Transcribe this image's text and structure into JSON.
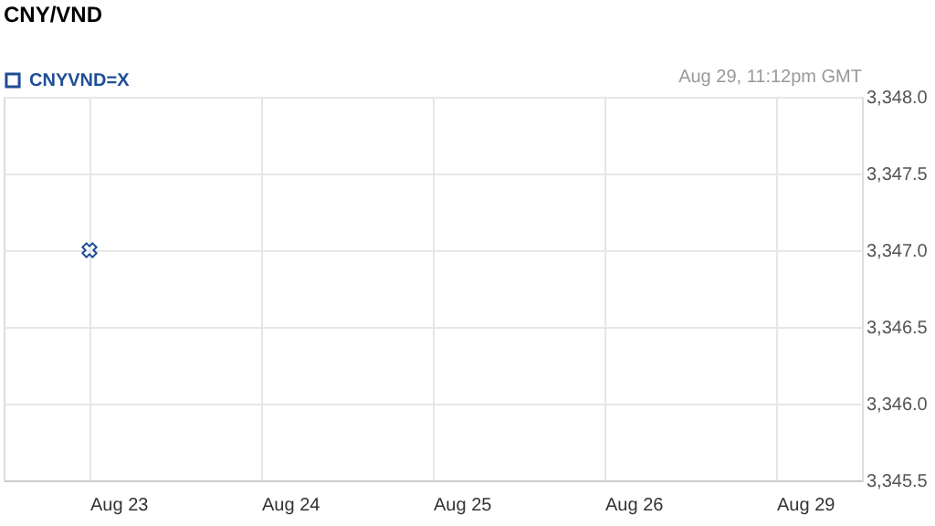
{
  "chart_data": {
    "type": "scatter",
    "title": "CNY/VND",
    "annotations": [
      "Aug 29, 11:12pm GMT"
    ],
    "categories": [
      "Aug 23",
      "Aug 24",
      "Aug 25",
      "Aug 26",
      "Aug 29"
    ],
    "series": [
      {
        "name": "CNYVND=X",
        "color": "#1f4e96",
        "values": [
          3347.0,
          null,
          null,
          null,
          null
        ]
      }
    ],
    "ylim": [
      3345.5,
      3348.0
    ],
    "yticks": [
      {
        "value": 3345.5,
        "label": "3,345.5"
      },
      {
        "value": 3346.0,
        "label": "3,346.0"
      },
      {
        "value": 3346.5,
        "label": "3,346.5"
      },
      {
        "value": 3347.0,
        "label": "3,347.0"
      },
      {
        "value": 3347.5,
        "label": "3,347.5"
      },
      {
        "value": 3348.0,
        "label": "3,348.0"
      }
    ],
    "grid": true,
    "legend": "top left",
    "marker": "cross"
  }
}
